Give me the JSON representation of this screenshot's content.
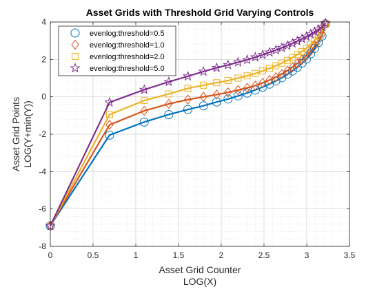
{
  "chart_data": {
    "type": "line",
    "title": "Asset Grids with Threshold Grid Varying Controls",
    "xlabel_lines": [
      "Asset Grid Counter",
      "LOG(X)"
    ],
    "ylabel_lines": [
      "Asset Grid Points",
      "LOG(Y+min(Y))"
    ],
    "xlim": [
      0,
      3.5
    ],
    "ylim": [
      -8,
      4
    ],
    "xticks": [
      0,
      0.5,
      1,
      1.5,
      2,
      2.5,
      3,
      3.5
    ],
    "xtick_labels": [
      "0",
      "0.5",
      "1",
      "1.5",
      "2",
      "2.5",
      "3",
      "3.5"
    ],
    "yticks": [
      -8,
      -6,
      -4,
      -2,
      0,
      2,
      4
    ],
    "ytick_labels": [
      "-8",
      "-6",
      "-4",
      "-2",
      "0",
      "2",
      "4"
    ],
    "grid": true,
    "minor_grid": true,
    "legend_position": "top-left",
    "x": [
      0,
      0.693,
      1.099,
      1.386,
      1.609,
      1.792,
      1.946,
      2.079,
      2.197,
      2.303,
      2.398,
      2.485,
      2.565,
      2.639,
      2.708,
      2.773,
      2.833,
      2.89,
      2.944,
      2.996,
      3.045,
      3.091,
      3.135,
      3.178,
      3.219
    ],
    "series": [
      {
        "name": "evenlog:threshold=0.5",
        "color": "#0072BD",
        "marker": "circle",
        "values": [
          -6.9,
          -2.05,
          -1.35,
          -0.95,
          -0.68,
          -0.48,
          -0.28,
          -0.12,
          0.05,
          0.2,
          0.36,
          0.52,
          0.68,
          0.85,
          1.02,
          1.2,
          1.38,
          1.58,
          1.8,
          2.02,
          2.3,
          2.58,
          2.9,
          3.25,
          3.9
        ]
      },
      {
        "name": "evenlog:threshold=1.0",
        "color": "#D95319",
        "marker": "diamond",
        "values": [
          -6.9,
          -1.5,
          -0.75,
          -0.38,
          -0.15,
          0.0,
          0.12,
          0.24,
          0.36,
          0.48,
          0.6,
          0.75,
          0.9,
          1.05,
          1.22,
          1.4,
          1.58,
          1.78,
          1.98,
          2.2,
          2.45,
          2.72,
          3.0,
          3.35,
          3.9
        ]
      },
      {
        "name": "evenlog:threshold=2.0",
        "color": "#EDB120",
        "marker": "square",
        "values": [
          -6.9,
          -0.95,
          -0.2,
          0.15,
          0.45,
          0.62,
          0.75,
          0.87,
          1.0,
          1.12,
          1.25,
          1.38,
          1.52,
          1.66,
          1.8,
          1.95,
          2.1,
          2.26,
          2.42,
          2.6,
          2.8,
          3.02,
          3.25,
          3.52,
          3.9
        ]
      },
      {
        "name": "evenlog:threshold=5.0",
        "color": "#7E2F8E",
        "marker": "star",
        "values": [
          -6.9,
          -0.3,
          0.38,
          0.8,
          1.1,
          1.35,
          1.55,
          1.7,
          1.85,
          1.98,
          2.12,
          2.25,
          2.38,
          2.5,
          2.62,
          2.74,
          2.86,
          2.98,
          3.1,
          3.22,
          3.35,
          3.48,
          3.6,
          3.75,
          3.95
        ]
      }
    ]
  }
}
